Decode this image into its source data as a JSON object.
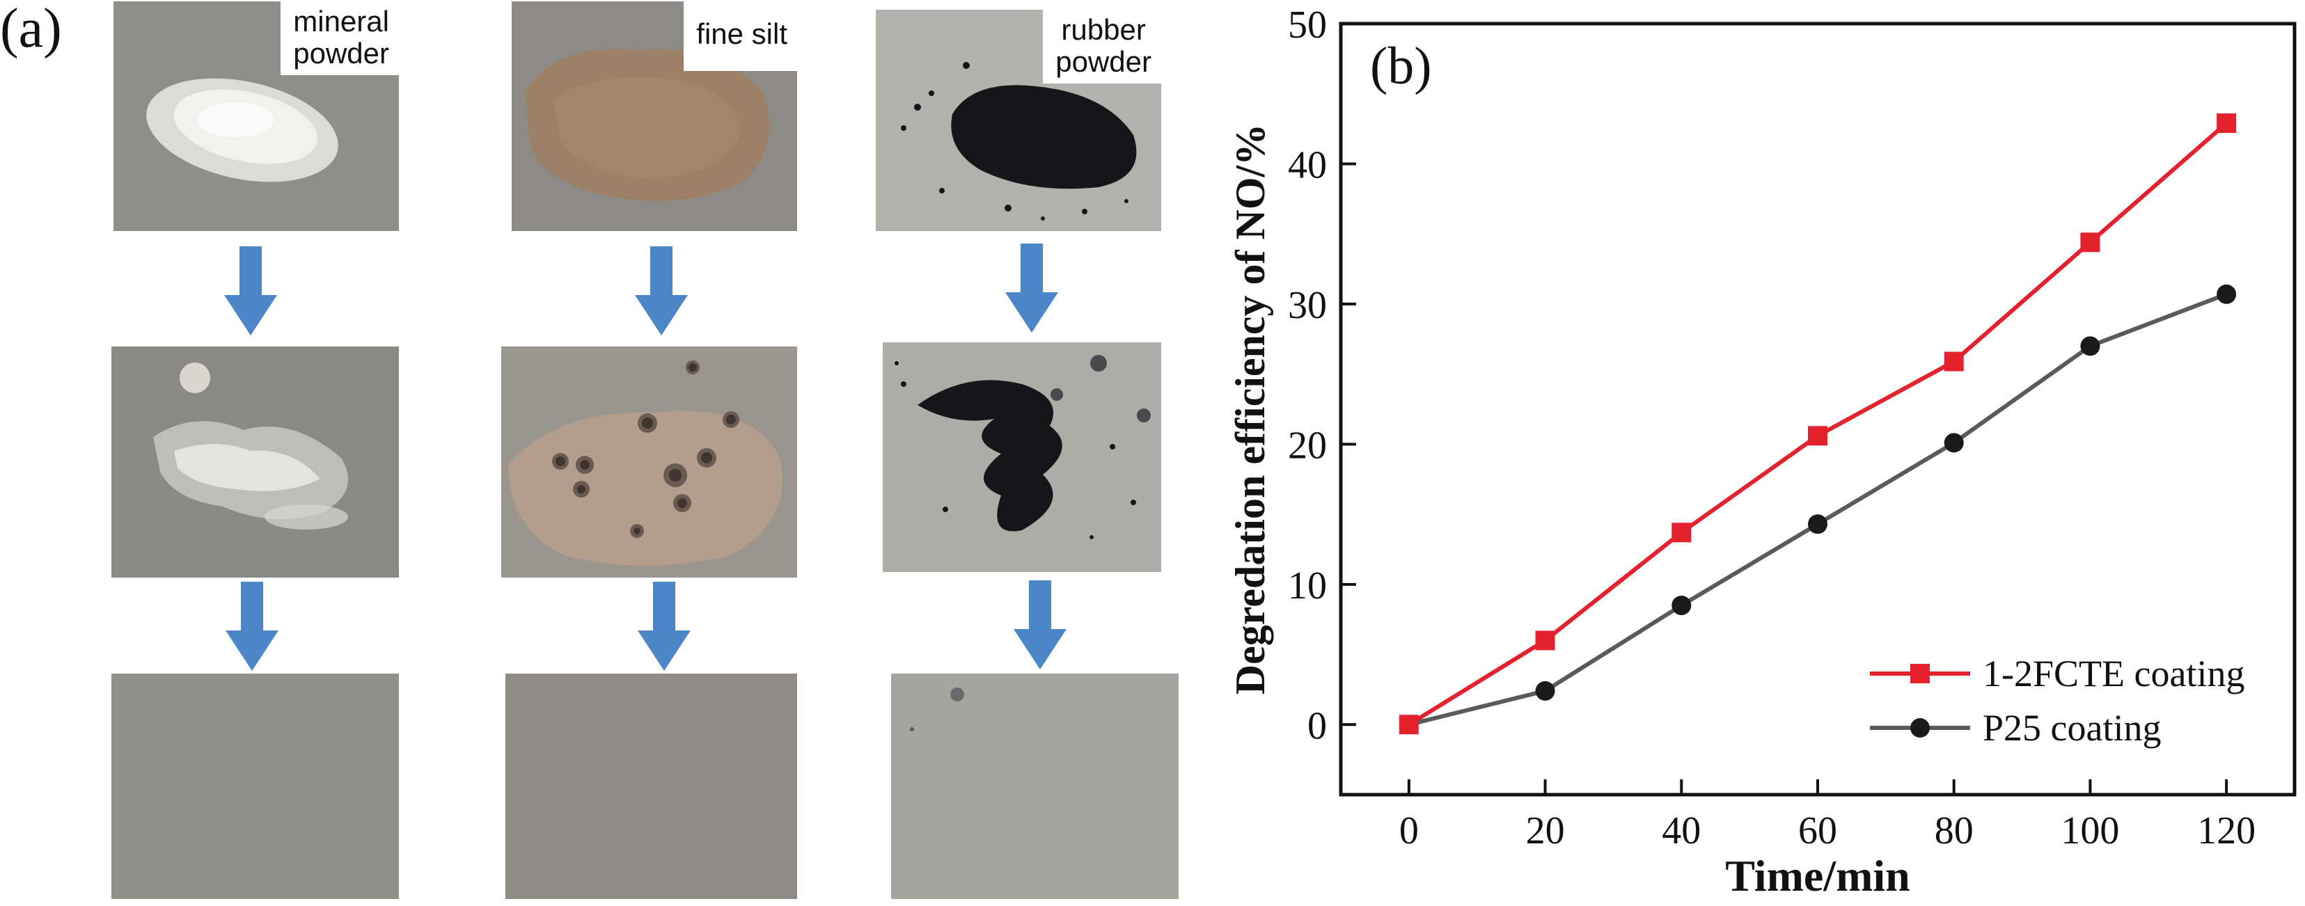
{
  "panel_a": {
    "label": "(a)",
    "columns": [
      {
        "name": "mineral-powder",
        "label_lines": [
          "mineral",
          "powder"
        ],
        "powder_color": "#eeeeea",
        "base_color": "#8f8e89"
      },
      {
        "name": "fine-silt",
        "label_lines": [
          "fine silt"
        ],
        "powder_color": "#9c8066",
        "base_color": "#8e8b86"
      },
      {
        "name": "rubber-powder",
        "label_lines": [
          "rubber",
          "powder"
        ],
        "powder_color": "#15161a",
        "base_color": "#b3b1ab"
      }
    ],
    "arrow_color": "#4a86c8"
  },
  "chart_data": {
    "type": "line",
    "panel_label": "(b)",
    "xlabel": "Time/min",
    "ylabel": "Degredation efficiency of NO/%",
    "x": [
      0,
      20,
      40,
      60,
      80,
      100,
      120
    ],
    "xlim": [
      -10,
      130
    ],
    "ylim": [
      -5,
      50
    ],
    "xticks": [
      0,
      20,
      40,
      60,
      80,
      100,
      120
    ],
    "yticks": [
      0,
      10,
      20,
      30,
      40,
      50
    ],
    "legend_position": "bottom-right",
    "grid": false,
    "series": [
      {
        "name": "1-2FCTE coating",
        "marker": "square",
        "color": "#e4222e",
        "values": [
          0,
          6.0,
          13.7,
          20.6,
          25.9,
          34.4,
          42.9
        ]
      },
      {
        "name": "P25 coating",
        "marker": "circle",
        "color": "#5a5a5a",
        "values": [
          0,
          2.4,
          8.5,
          14.3,
          20.1,
          27.0,
          30.7
        ]
      }
    ]
  }
}
